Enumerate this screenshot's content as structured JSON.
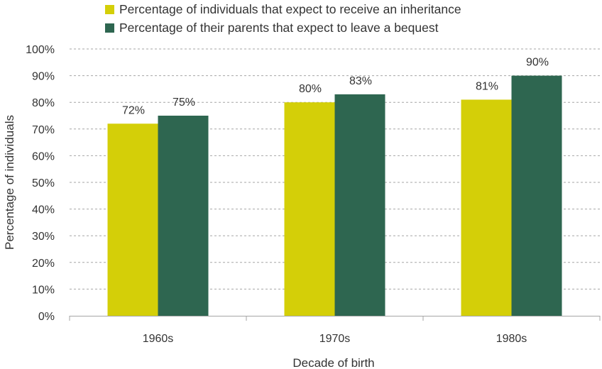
{
  "chart_data": {
    "type": "bar",
    "title": "",
    "categories": [
      "1960s",
      "1970s",
      "1980s"
    ],
    "series": [
      {
        "name": "Percentage of individuals that expect to receive an inheritance",
        "color": "#d4cf08",
        "values": [
          72,
          80,
          81
        ],
        "labels": [
          "72%",
          "80%",
          "81%"
        ]
      },
      {
        "name": "Percentage of their parents that expect to leave a bequest",
        "color": "#2e6650",
        "values": [
          75,
          83,
          90
        ],
        "labels": [
          "75%",
          "83%",
          "90%"
        ]
      }
    ],
    "xlabel": "Decade of birth",
    "ylabel": "Percentage of individuals",
    "ylim": [
      0,
      100
    ],
    "yticks": [
      0,
      10,
      20,
      30,
      40,
      50,
      60,
      70,
      80,
      90,
      100
    ],
    "ytick_labels": [
      "0%",
      "10%",
      "20%",
      "30%",
      "40%",
      "50%",
      "60%",
      "70%",
      "80%",
      "90%",
      "100%"
    ],
    "grid": true,
    "legend_position": "top"
  }
}
